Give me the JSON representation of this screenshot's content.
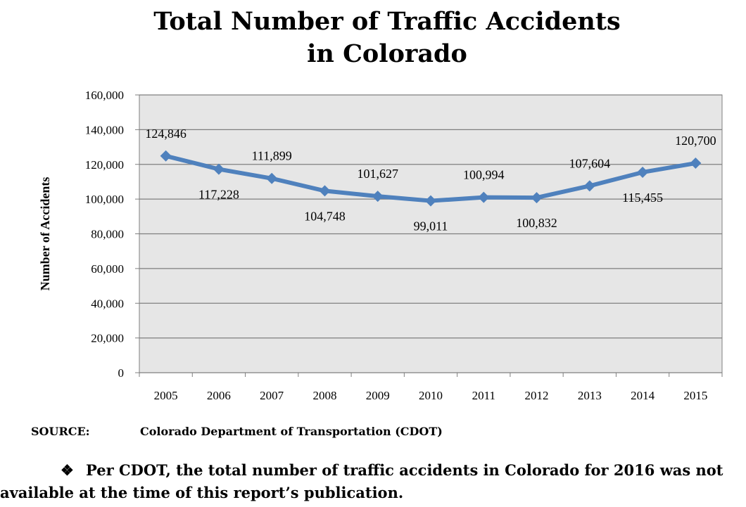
{
  "chart_data": {
    "type": "line",
    "title_line1": "Total Number of Traffic Accidents",
    "title_line2": "in Colorado",
    "xlabel": "",
    "ylabel": "Number of Accidents",
    "ylim": [
      0,
      160000
    ],
    "yticks": [
      0,
      20000,
      40000,
      60000,
      80000,
      100000,
      120000,
      140000,
      160000
    ],
    "ytick_labels": [
      "0",
      "20,000",
      "40,000",
      "60,000",
      "80,000",
      "100,000",
      "120,000",
      "140,000",
      "160,000"
    ],
    "categories": [
      "2005",
      "2006",
      "2007",
      "2008",
      "2009",
      "2010",
      "2011",
      "2012",
      "2013",
      "2014",
      "2015"
    ],
    "series": [
      {
        "values": [
          124846,
          117228,
          111899,
          104748,
          101627,
          99011,
          100994,
          100832,
          107604,
          115455,
          120700
        ],
        "labels": [
          "124,846",
          "117,228",
          "111,899",
          "104,748",
          "101,627",
          "99,011",
          "100,994",
          "100,832",
          "107,604",
          "115,455",
          "120,700"
        ],
        "label_positions": [
          "above",
          "below",
          "above",
          "below",
          "above",
          "below",
          "above",
          "below",
          "above",
          "below",
          "above"
        ],
        "color": "#4f81bd"
      }
    ],
    "grid": true,
    "plot_background": "#e6e6e6",
    "legend": "none"
  },
  "source": {
    "label": "SOURCE:",
    "text": "Colorado Department of Transportation (CDOT)"
  },
  "note": {
    "bullet": "❖",
    "line1": "Per CDOT, the total number of traffic accidents in Colorado for 2016 was not",
    "line2": "available at the time of this report’s publication."
  }
}
